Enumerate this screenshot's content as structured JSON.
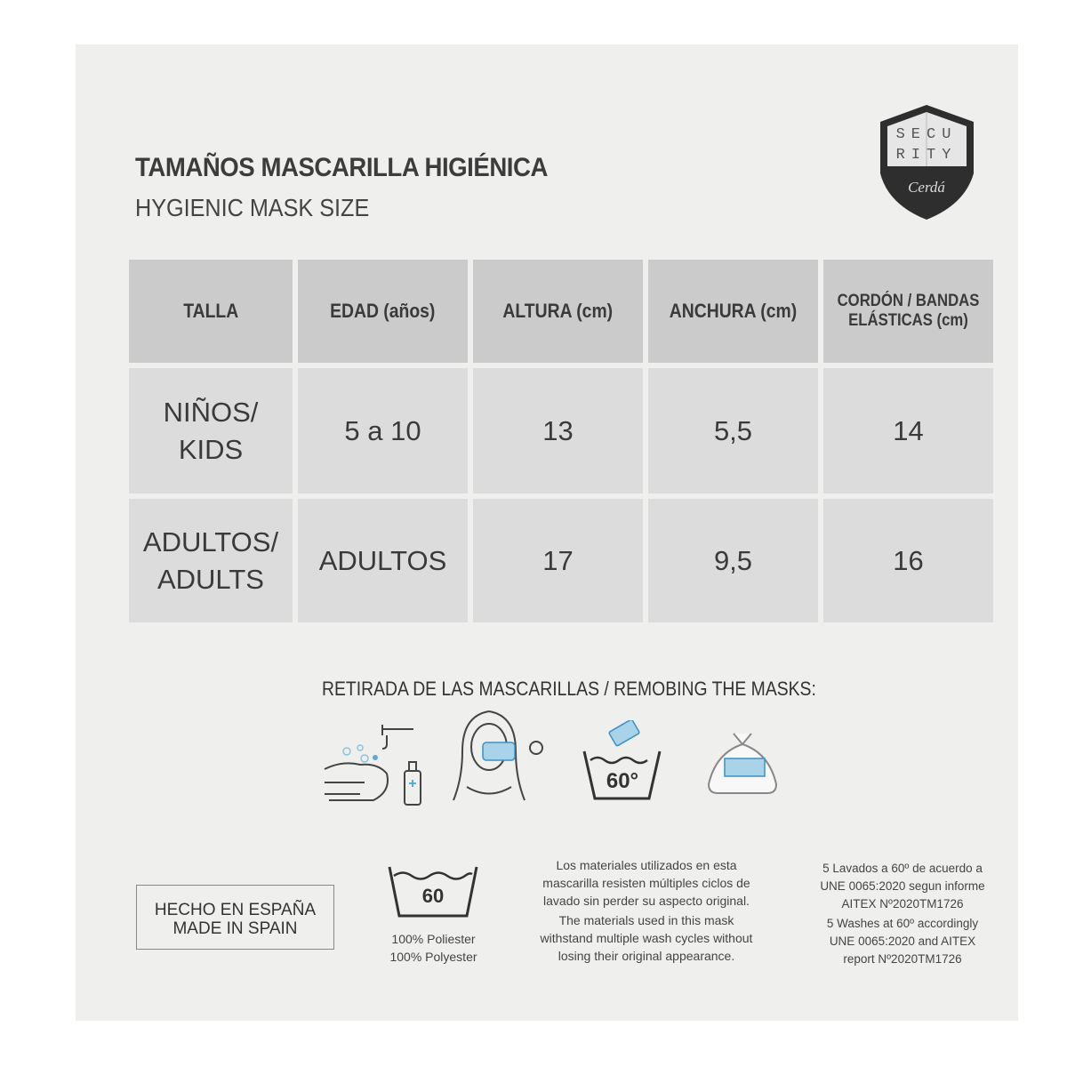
{
  "title": "TAMAÑOS MASCARILLA HIGIÉNICA",
  "subtitle": "HYGIENIC MASK SIZE",
  "logo": {
    "text_top": "SECURITY",
    "text_script": "Cerdá"
  },
  "table": {
    "headers": [
      "TALLA",
      "EDAD (años)",
      "ALTURA (cm)",
      "ANCHURA (cm)",
      "CORDÓN / BANDAS ELÁSTICAS (cm)"
    ],
    "rows": [
      [
        "NIÑOS/ KIDS",
        "5 a 10",
        "13",
        "5,5",
        "14"
      ],
      [
        "ADULTOS/ ADULTS",
        "ADULTOS",
        "17",
        "9,5",
        "16"
      ]
    ]
  },
  "removal": {
    "heading": "RETIRADA DE LAS MASCARILLAS / REMOBING THE MASKS:",
    "icons": [
      "hand-washing-icon",
      "person-removing-mask-icon",
      "wash-60-icon",
      "bag-icon"
    ],
    "wash_temp": "60°"
  },
  "footer": {
    "made_in": [
      "HECHO EN ESPAÑA",
      "MADE IN SPAIN"
    ],
    "wash_symbol": "60",
    "material": [
      "100% Poliester",
      "100% Polyester"
    ],
    "materials_es": "Los materiales utilizados en esta mascarilla resisten múltiples ciclos de lavado sin perder su aspecto original.",
    "materials_en": "The materials used in this mask withstand multiple wash cycles without losing their original appearance.",
    "washes_es": "5 Lavados a 60º de acuerdo a UNE 0065:2020 segun informe AITEX Nº2020TM1726",
    "washes_en": "5 Washes at 60º accordingly UNE 0065:2020 and AITEX report Nº2020TM1726"
  },
  "colors": {
    "panel": "#efefed",
    "header_cell": "#cbcbcb",
    "body_cell": "#dcdcdc",
    "mask_blue": "#a9d3e8"
  }
}
